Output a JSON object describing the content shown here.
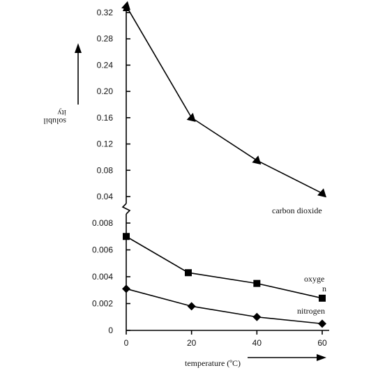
{
  "chart_data": {
    "type": "line",
    "xlabel": "temperature (ºC)",
    "ylabel_line1": "solubil",
    "ylabel_line2": "ity",
    "x_ticks": [
      0,
      20,
      40,
      60
    ],
    "y_ticks_lower": [
      "0",
      "0.002",
      "0.004",
      "0.006",
      "0.008"
    ],
    "y_ticks_upper": [
      "0.04",
      "0.08",
      "0.12",
      "0.16",
      "0.20",
      "0.24",
      "0.28",
      "0.32"
    ],
    "ylim_lower": [
      0,
      0.008
    ],
    "ylim_upper": [
      0.04,
      0.32
    ],
    "axis_break": true,
    "grid": false,
    "series": [
      {
        "name": "carbon dioxide",
        "marker": "triangle",
        "x": [
          0,
          20,
          40,
          60
        ],
        "y": [
          0.33,
          0.16,
          0.095,
          0.045
        ],
        "segment": "upper"
      },
      {
        "name_line1": "oxyge",
        "name_line2": "n",
        "marker": "square",
        "x": [
          0,
          19,
          40,
          60
        ],
        "y": [
          0.007,
          0.0043,
          0.0035,
          0.0024
        ],
        "segment": "lower"
      },
      {
        "name": "nitrogen",
        "marker": "diamond",
        "x": [
          0,
          20,
          40,
          60
        ],
        "y": [
          0.0031,
          0.0018,
          0.001,
          0.0005
        ],
        "segment": "lower"
      }
    ]
  }
}
